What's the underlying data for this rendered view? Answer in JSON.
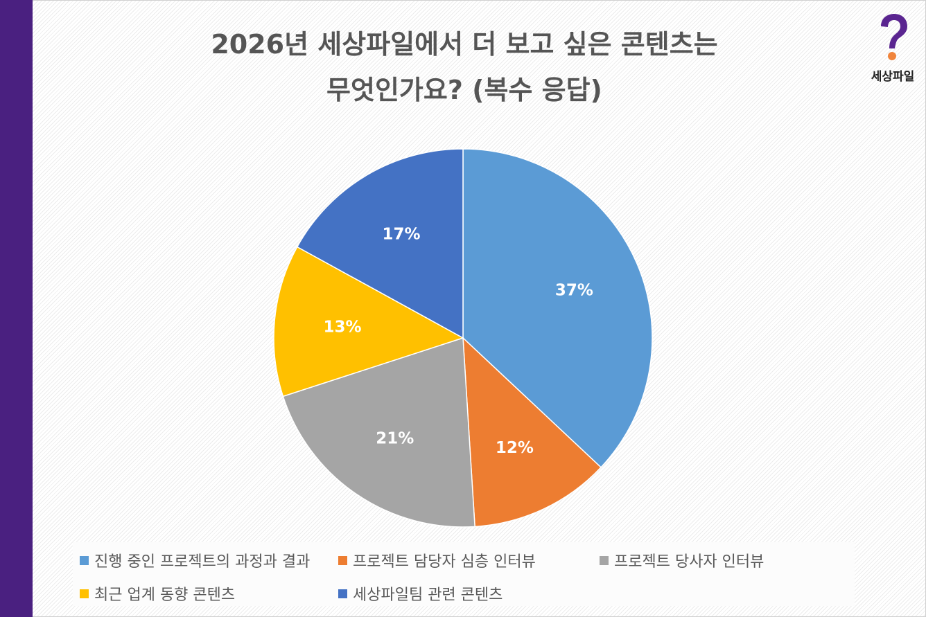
{
  "chart_data": {
    "type": "pie",
    "title_line1": "2026년 세상파일에서 더 보고 싶은 콘텐츠는",
    "title_line2": "무엇인가요? (복수 응답)",
    "start": "top",
    "direction": "clockwise",
    "slices": [
      {
        "label": "진행 중인 프로젝트의 과정과 결과",
        "value": 37,
        "display": "37%",
        "color": "#5b9bd5"
      },
      {
        "label": "프로젝트 담당자 심층 인터뷰",
        "value": 12,
        "display": "12%",
        "color": "#ed7d31"
      },
      {
        "label": "프로젝트 당사자 인터뷰",
        "value": 21,
        "display": "21%",
        "color": "#a5a5a5"
      },
      {
        "label": "최근 업계 동향 콘텐츠",
        "value": 13,
        "display": "13%",
        "color": "#ffc000"
      },
      {
        "label": "세상파일팀 관련 콘텐츠",
        "value": 17,
        "display": "17%",
        "color": "#4472c4"
      }
    ],
    "legend_position": "bottom"
  },
  "logo": {
    "text": "세상파일",
    "icon": "question-mark-icon",
    "colors": {
      "purple": "#5a2590",
      "orange": "#f0843c"
    }
  },
  "sidebar_color": "#4a2080"
}
